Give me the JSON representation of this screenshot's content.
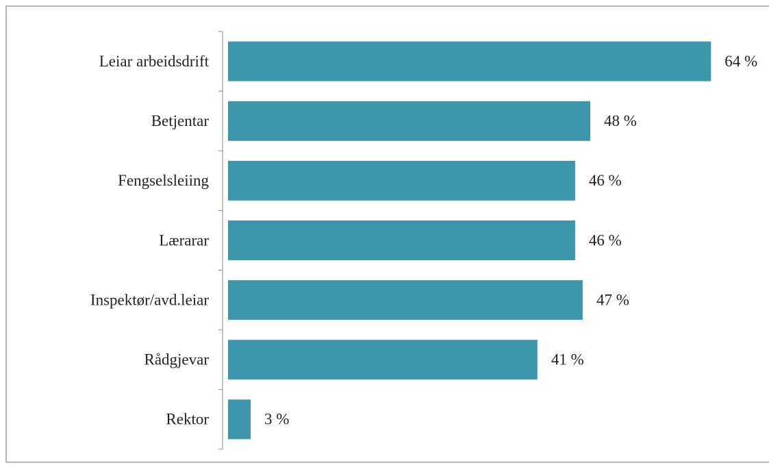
{
  "chart_data": {
    "type": "bar",
    "orientation": "horizontal",
    "categories": [
      "Leiar arbeidsdrift",
      "Betjentar",
      "Fengselsleiing",
      "Lærarar",
      "Inspektør/avd.leiar",
      "Rådgjevar",
      "Rektor"
    ],
    "values": [
      64,
      48,
      46,
      46,
      47,
      41,
      3
    ],
    "value_labels": [
      "64 %",
      "48 %",
      "46 %",
      "46 %",
      "47 %",
      "41 %",
      "3 %"
    ],
    "color": "#3c97ac"
  }
}
